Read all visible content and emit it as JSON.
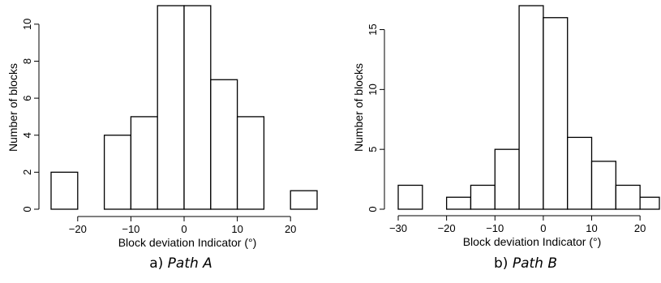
{
  "chart_data": [
    {
      "type": "bar",
      "histogram": true,
      "bin_edges": [
        -25,
        -20,
        -15,
        -10,
        -5,
        0,
        5,
        10,
        15,
        20,
        25
      ],
      "values": [
        2,
        0,
        4,
        5,
        11,
        11,
        7,
        5,
        0,
        1
      ],
      "xlabel": "Block deviation Indicator (°)",
      "ylabel": "Number of blocks",
      "xlim": [
        -25,
        25
      ],
      "ylim": [
        0,
        11
      ],
      "x_ticks": [
        -20,
        -10,
        0,
        10,
        20
      ],
      "x_tick_labels": [
        "−20",
        "−10",
        "0",
        "10",
        "20"
      ],
      "y_ticks": [
        0,
        2,
        4,
        6,
        8,
        10
      ],
      "y_tick_labels": [
        "0",
        "2",
        "4",
        "6",
        "8",
        "10"
      ],
      "grid": false,
      "caption_prefix": "a) ",
      "caption_emph": "Path A"
    },
    {
      "type": "bar",
      "histogram": true,
      "bin_edges": [
        -30,
        -25,
        -20,
        -15,
        -10,
        -5,
        0,
        5,
        10,
        15,
        20,
        25
      ],
      "values": [
        2,
        0,
        1,
        2,
        5,
        17,
        16,
        6,
        4,
        2,
        1
      ],
      "xlabel": "Block deviation Indicator (°)",
      "ylabel": "Number of blocks",
      "xlim": [
        -30,
        24
      ],
      "ylim": [
        0,
        17
      ],
      "x_ticks": [
        -30,
        -20,
        -10,
        0,
        10,
        20
      ],
      "x_tick_labels": [
        "−30",
        "−20",
        "−10",
        "0",
        "10",
        "20"
      ],
      "y_ticks": [
        0,
        5,
        10,
        15
      ],
      "y_tick_labels": [
        "0",
        "5",
        "10",
        "15"
      ],
      "grid": false,
      "caption_prefix": "b) ",
      "caption_emph": "Path B"
    }
  ]
}
